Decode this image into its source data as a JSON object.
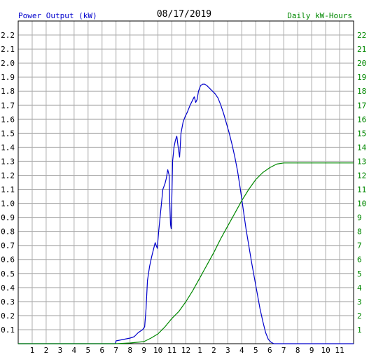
{
  "chart_data": {
    "type": "line",
    "title": "08/17/2019",
    "left_axis_label": "Power Output (kW)",
    "right_axis_label": "Daily kW-Hours",
    "x_tick_labels": [
      "1",
      "2",
      "3",
      "4",
      "5",
      "6",
      "7",
      "8",
      "9",
      "10",
      "11",
      "12",
      "1",
      "2",
      "3",
      "4",
      "5",
      "6",
      "7",
      "8",
      "9",
      "10",
      "11"
    ],
    "y_left_ticks": [
      "0.1",
      "0.2",
      "0.3",
      "0.4",
      "0.5",
      "0.6",
      "0.7",
      "0.8",
      "0.9",
      "1.0",
      "1.1",
      "1.2",
      "1.3",
      "1.4",
      "1.5",
      "1.6",
      "1.7",
      "1.8",
      "1.9",
      "2.0",
      "2.1",
      "2.2"
    ],
    "y_right_ticks": [
      "1",
      "2",
      "3",
      "4",
      "5",
      "6",
      "7",
      "8",
      "9",
      "10",
      "11",
      "12",
      "13",
      "14",
      "15",
      "16",
      "17",
      "18",
      "19",
      "20",
      "21",
      "22"
    ],
    "ylim_left": [
      0,
      2.3
    ],
    "ylim_right": [
      0,
      23
    ],
    "xlim_hours": [
      0,
      24
    ],
    "grid": true,
    "colors": {
      "power": "#0000cc",
      "energy": "#008800",
      "left_axis_text": "#0000cc",
      "right_axis_text": "#008800",
      "grid": "#aaaaaa",
      "title": "#000000"
    },
    "series": [
      {
        "name": "Power Output (kW)",
        "axis": "left",
        "points": [
          [
            0,
            0
          ],
          [
            6.95,
            0
          ],
          [
            7.0,
            0.02
          ],
          [
            7.5,
            0.03
          ],
          [
            8.0,
            0.04
          ],
          [
            8.3,
            0.05
          ],
          [
            8.6,
            0.08
          ],
          [
            8.9,
            0.1
          ],
          [
            9.05,
            0.12
          ],
          [
            9.15,
            0.25
          ],
          [
            9.25,
            0.45
          ],
          [
            9.4,
            0.55
          ],
          [
            9.55,
            0.62
          ],
          [
            9.7,
            0.68
          ],
          [
            9.8,
            0.72
          ],
          [
            9.95,
            0.68
          ],
          [
            10.05,
            0.8
          ],
          [
            10.15,
            0.9
          ],
          [
            10.25,
            1.0
          ],
          [
            10.35,
            1.1
          ],
          [
            10.5,
            1.14
          ],
          [
            10.6,
            1.18
          ],
          [
            10.7,
            1.24
          ],
          [
            10.8,
            1.2
          ],
          [
            10.85,
            1.0
          ],
          [
            10.9,
            0.85
          ],
          [
            10.95,
            0.82
          ],
          [
            11.05,
            1.3
          ],
          [
            11.15,
            1.4
          ],
          [
            11.25,
            1.45
          ],
          [
            11.35,
            1.48
          ],
          [
            11.45,
            1.4
          ],
          [
            11.55,
            1.33
          ],
          [
            11.65,
            1.5
          ],
          [
            11.8,
            1.58
          ],
          [
            11.95,
            1.62
          ],
          [
            12.1,
            1.65
          ],
          [
            12.3,
            1.7
          ],
          [
            12.5,
            1.74
          ],
          [
            12.6,
            1.76
          ],
          [
            12.7,
            1.72
          ],
          [
            12.8,
            1.74
          ],
          [
            12.9,
            1.8
          ],
          [
            13.05,
            1.84
          ],
          [
            13.2,
            1.85
          ],
          [
            13.35,
            1.85
          ],
          [
            13.5,
            1.84
          ],
          [
            13.7,
            1.82
          ],
          [
            13.9,
            1.8
          ],
          [
            14.1,
            1.78
          ],
          [
            14.3,
            1.75
          ],
          [
            14.5,
            1.7
          ],
          [
            14.7,
            1.64
          ],
          [
            14.9,
            1.57
          ],
          [
            15.1,
            1.5
          ],
          [
            15.3,
            1.42
          ],
          [
            15.5,
            1.33
          ],
          [
            15.7,
            1.23
          ],
          [
            15.9,
            1.1
          ],
          [
            16.1,
            0.96
          ],
          [
            16.3,
            0.82
          ],
          [
            16.5,
            0.7
          ],
          [
            16.7,
            0.58
          ],
          [
            16.9,
            0.47
          ],
          [
            17.1,
            0.36
          ],
          [
            17.3,
            0.25
          ],
          [
            17.5,
            0.16
          ],
          [
            17.7,
            0.08
          ],
          [
            17.9,
            0.03
          ],
          [
            18.1,
            0.01
          ],
          [
            18.3,
            0
          ],
          [
            24,
            0
          ]
        ]
      },
      {
        "name": "Daily kW-Hours",
        "axis": "right",
        "points": [
          [
            0,
            0
          ],
          [
            7.0,
            0
          ],
          [
            8.0,
            0.05
          ],
          [
            9.0,
            0.15
          ],
          [
            9.5,
            0.4
          ],
          [
            10.0,
            0.7
          ],
          [
            10.5,
            1.2
          ],
          [
            11.0,
            1.8
          ],
          [
            11.5,
            2.3
          ],
          [
            12.0,
            3.0
          ],
          [
            12.5,
            3.8
          ],
          [
            13.0,
            4.7
          ],
          [
            13.5,
            5.6
          ],
          [
            14.0,
            6.5
          ],
          [
            14.5,
            7.5
          ],
          [
            15.0,
            8.4
          ],
          [
            15.5,
            9.3
          ],
          [
            16.0,
            10.2
          ],
          [
            16.5,
            11.0
          ],
          [
            17.0,
            11.7
          ],
          [
            17.5,
            12.2
          ],
          [
            18.0,
            12.55
          ],
          [
            18.5,
            12.8
          ],
          [
            19.0,
            12.88
          ],
          [
            24,
            12.88
          ]
        ]
      }
    ]
  }
}
